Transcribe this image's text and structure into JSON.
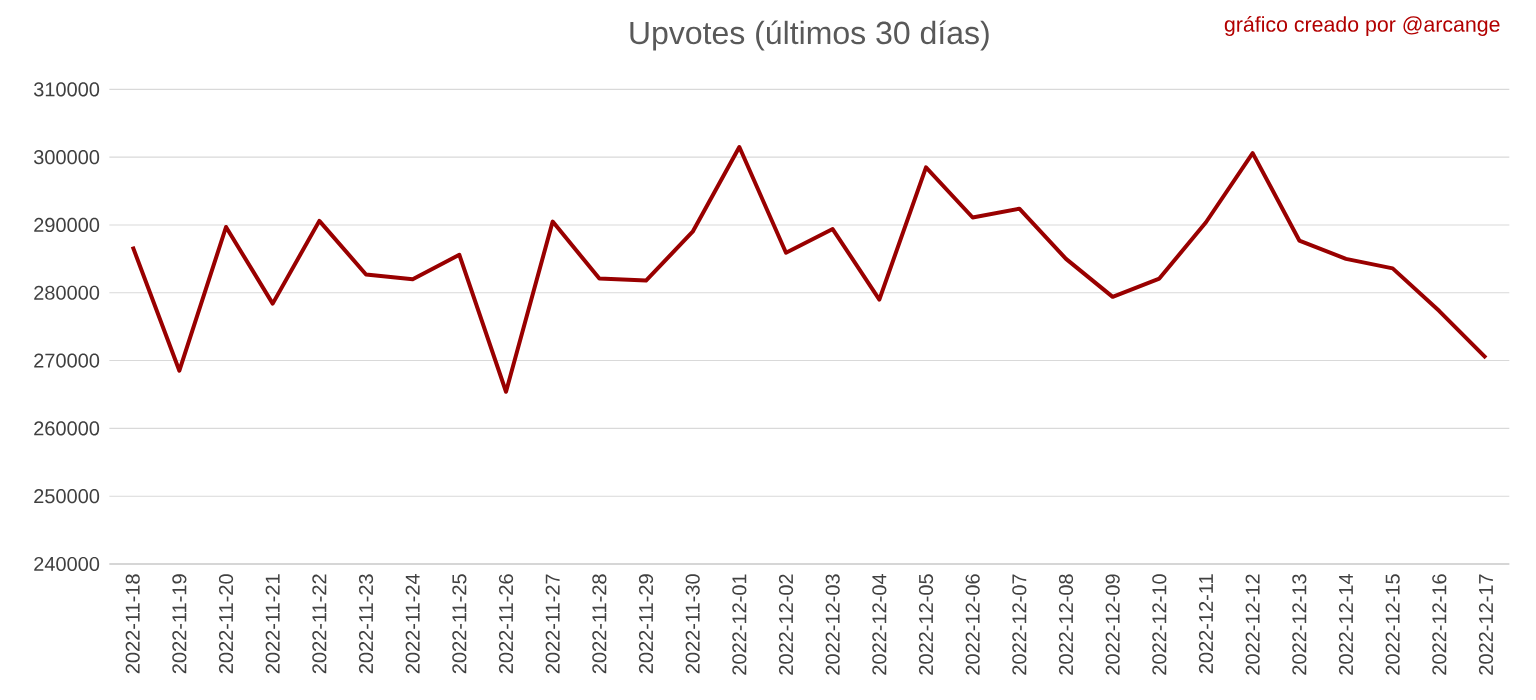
{
  "chart_data": {
    "type": "line",
    "title": "Upvotes (últimos 30 días)",
    "annotations": [
      "gráfico creado por @arcange"
    ],
    "categories": [
      "2022-11-18",
      "2022-11-19",
      "2022-11-20",
      "2022-11-21",
      "2022-11-22",
      "2022-11-23",
      "2022-11-24",
      "2022-11-25",
      "2022-11-26",
      "2022-11-27",
      "2022-11-28",
      "2022-11-29",
      "2022-11-30",
      "2022-12-01",
      "2022-12-02",
      "2022-12-03",
      "2022-12-04",
      "2022-12-05",
      "2022-12-06",
      "2022-12-07",
      "2022-12-08",
      "2022-12-09",
      "2022-12-10",
      "2022-12-11",
      "2022-12-12",
      "2022-12-13",
      "2022-12-14",
      "2022-12-15",
      "2022-12-16",
      "2022-12-17"
    ],
    "series": [
      {
        "color": "#990000",
        "values": [
          286800,
          268500,
          289700,
          278400,
          290600,
          282700,
          282000,
          285600,
          265400,
          290500,
          282100,
          281800,
          289000,
          301500,
          285900,
          289400,
          279000,
          298500,
          291100,
          292400,
          285000,
          279400,
          282100,
          290400,
          300600,
          287700,
          285000,
          283600,
          277300,
          270400
        ]
      }
    ],
    "ylim": [
      240000,
      310000
    ],
    "yticks": [
      240000,
      250000,
      260000,
      270000,
      280000,
      290000,
      300000,
      310000
    ],
    "grid": "y"
  }
}
